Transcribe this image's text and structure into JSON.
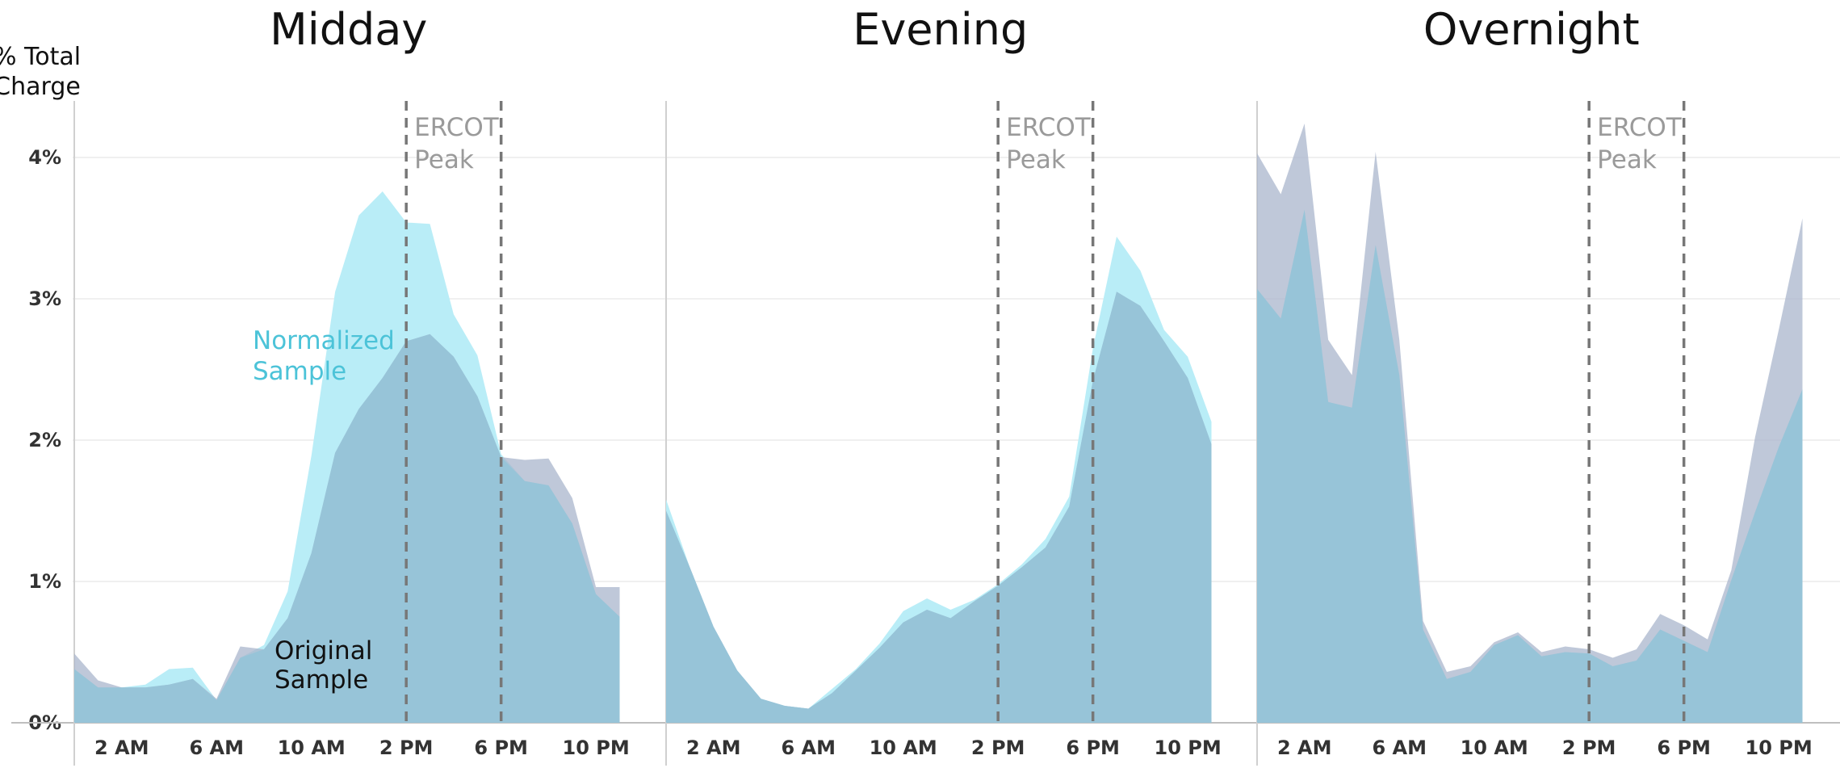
{
  "chart_data": {
    "type": "area",
    "ylabel": [
      "% Total",
      "Charge"
    ],
    "ylim": [
      0,
      4.4
    ],
    "yticks": [
      0,
      1,
      2,
      3,
      4
    ],
    "ytick_labels": [
      "0%",
      "1%",
      "2%",
      "3%",
      "4%"
    ],
    "x_hours": [
      0,
      1,
      2,
      3,
      4,
      5,
      6,
      7,
      8,
      9,
      10,
      11,
      12,
      13,
      14,
      15,
      16,
      17,
      18,
      19,
      20,
      21,
      22,
      23
    ],
    "xticks": [
      2,
      6,
      10,
      14,
      18,
      22
    ],
    "xtick_labels": [
      "2 AM",
      "6 AM",
      "10 AM",
      "2 PM",
      "6 PM",
      "10 PM"
    ],
    "peak_window": [
      14,
      18
    ],
    "peak_label": [
      "ERCOT",
      "Peak"
    ],
    "colors": {
      "original": "#a9b5cc",
      "normalized": "#b9edf7",
      "overlap": "#97c4d8",
      "peak": "#777777",
      "normalized_text": "#4cc3d8"
    },
    "series_names": {
      "normalized": [
        "Normalized",
        "Sample"
      ],
      "original": [
        "Original",
        "Sample"
      ]
    },
    "panels": [
      {
        "title": "Midday",
        "original": [
          0.49,
          0.3,
          0.25,
          0.25,
          0.27,
          0.31,
          0.17,
          0.54,
          0.52,
          0.74,
          1.2,
          1.91,
          2.22,
          2.44,
          2.7,
          2.75,
          2.59,
          2.31,
          1.88,
          1.86,
          1.87,
          1.59,
          0.96,
          0.96
        ],
        "normalized": [
          0.38,
          0.25,
          0.25,
          0.27,
          0.38,
          0.39,
          0.16,
          0.46,
          0.55,
          0.93,
          1.89,
          3.05,
          3.59,
          3.76,
          3.54,
          3.53,
          2.89,
          2.6,
          1.9,
          1.71,
          1.68,
          1.41,
          0.91,
          0.75
        ]
      },
      {
        "title": "Evening",
        "original": [
          1.5,
          1.1,
          0.68,
          0.37,
          0.17,
          0.12,
          0.1,
          0.21,
          0.37,
          0.53,
          0.71,
          0.8,
          0.74,
          0.86,
          0.97,
          1.1,
          1.24,
          1.53,
          2.42,
          3.05,
          2.95,
          2.7,
          2.44,
          1.97
        ],
        "normalized": [
          1.58,
          1.1,
          0.68,
          0.37,
          0.17,
          0.12,
          0.1,
          0.24,
          0.38,
          0.56,
          0.79,
          0.88,
          0.8,
          0.87,
          0.98,
          1.12,
          1.3,
          1.6,
          2.65,
          3.44,
          3.2,
          2.78,
          2.59,
          2.13
        ]
      },
      {
        "title": "Overnight",
        "original": [
          4.03,
          3.74,
          4.24,
          2.71,
          2.46,
          4.04,
          2.71,
          0.72,
          0.36,
          0.4,
          0.57,
          0.64,
          0.5,
          0.54,
          0.52,
          0.46,
          0.52,
          0.77,
          0.69,
          0.59,
          1.08,
          2.02,
          2.78,
          3.57
        ],
        "normalized": [
          3.07,
          2.86,
          3.63,
          2.27,
          2.23,
          3.38,
          2.46,
          0.66,
          0.31,
          0.36,
          0.55,
          0.62,
          0.47,
          0.5,
          0.49,
          0.4,
          0.44,
          0.66,
          0.58,
          0.5,
          1.01,
          1.49,
          1.95,
          2.36
        ]
      }
    ]
  }
}
